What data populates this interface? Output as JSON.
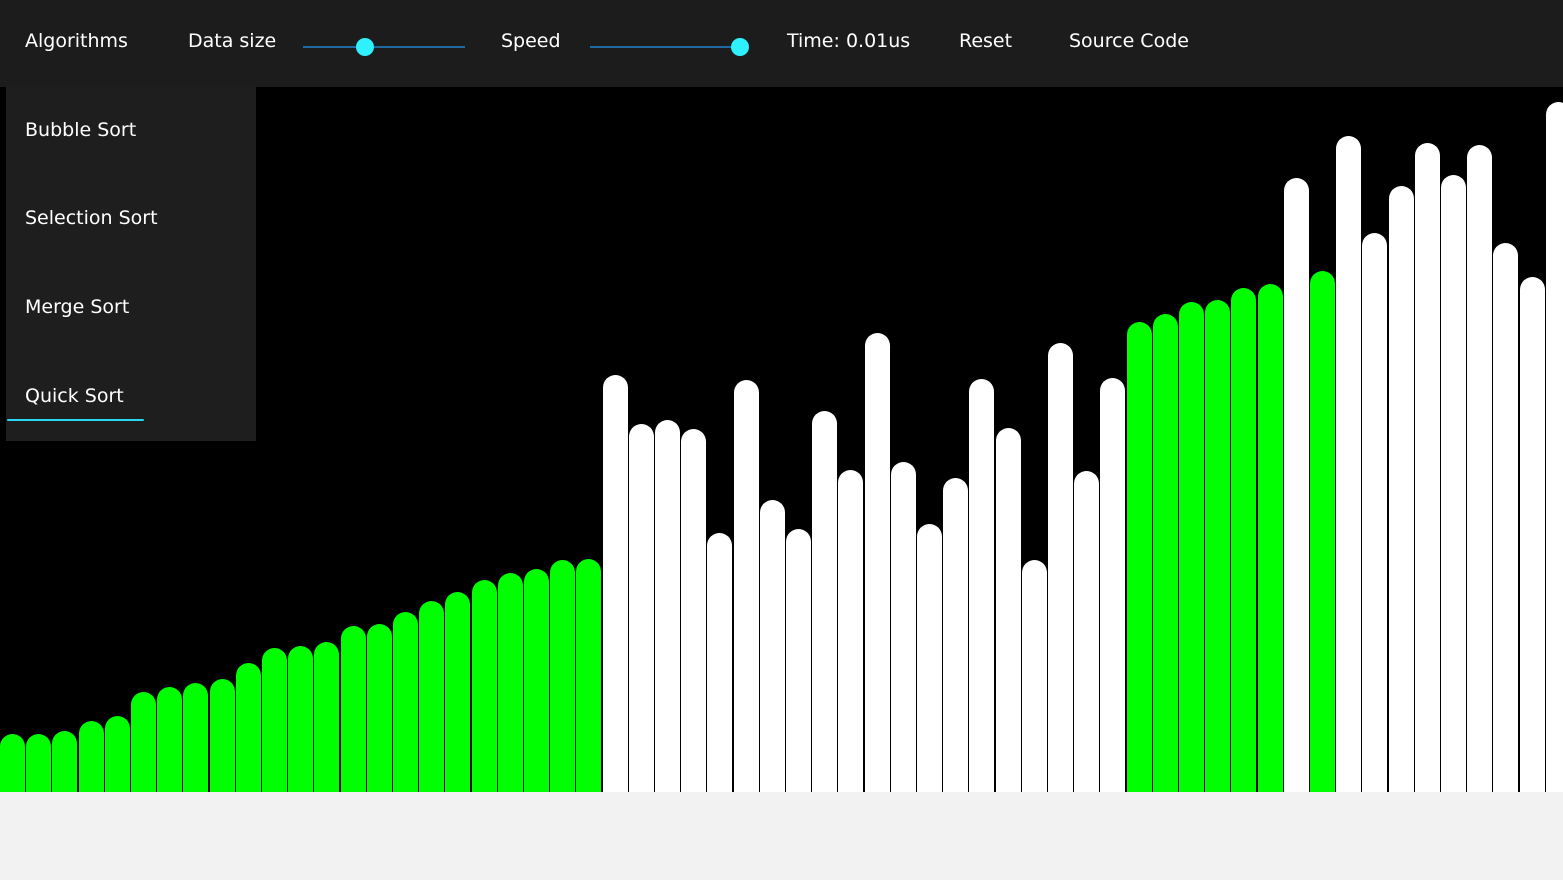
{
  "nav": {
    "algorithms": "Algorithms",
    "data_size": "Data size",
    "data_size_value_pct": 38,
    "speed": "Speed",
    "speed_value_pct": 100,
    "time": "Time: 0.01us",
    "reset": "Reset",
    "source": "Source Code"
  },
  "menu": {
    "items": [
      "Bubble Sort",
      "Selection Sort",
      "Merge Sort",
      "Quick Sort"
    ],
    "active": "Quick Sort"
  },
  "colors": {
    "sorted": "#00ff00",
    "unsorted": "#ffffff",
    "accent": "#2ff0ff"
  },
  "chart_data": {
    "type": "bar",
    "values": [
      58,
      58,
      61,
      71,
      76,
      100,
      105,
      109,
      113,
      129,
      144,
      146,
      150,
      166,
      168,
      180,
      191,
      200,
      212,
      219,
      223,
      232,
      233,
      417,
      368,
      372,
      363,
      259,
      412,
      292,
      263,
      381,
      322,
      459,
      330,
      268,
      314,
      413,
      364,
      232,
      449,
      321,
      414,
      470,
      478,
      490,
      492,
      504,
      508,
      614,
      521,
      656,
      559,
      606,
      649,
      617,
      647,
      549,
      515,
      690
    ],
    "states": [
      "s",
      "s",
      "s",
      "s",
      "s",
      "s",
      "s",
      "s",
      "s",
      "s",
      "s",
      "s",
      "s",
      "s",
      "s",
      "s",
      "s",
      "s",
      "s",
      "s",
      "s",
      "s",
      "s",
      "u",
      "u",
      "u",
      "u",
      "u",
      "u",
      "u",
      "u",
      "u",
      "u",
      "u",
      "u",
      "u",
      "u",
      "u",
      "u",
      "u",
      "u",
      "u",
      "u",
      "s",
      "s",
      "s",
      "s",
      "s",
      "s",
      "u",
      "s",
      "u",
      "u",
      "u",
      "u",
      "u",
      "u",
      "u",
      "u",
      "u"
    ]
  }
}
